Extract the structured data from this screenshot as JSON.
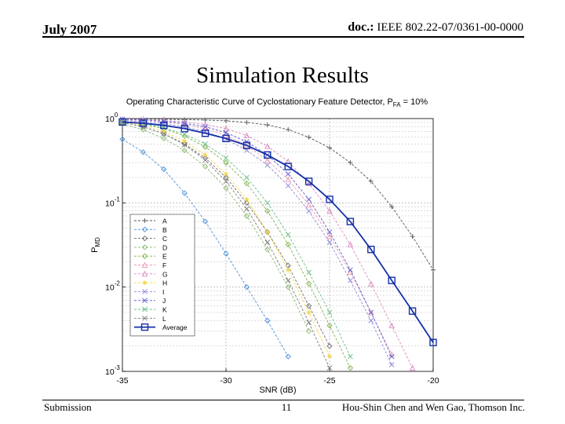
{
  "header": {
    "date": "July 2007",
    "doc_label": "doc.:",
    "doc_number": "IEEE 802.22-07/0361-00-0000"
  },
  "slide_title": "Simulation Results",
  "footer": {
    "left": "Submission",
    "page": "11",
    "right": "Hou-Shin Chen and Wen Gao, Thomson Inc."
  },
  "chart_data": {
    "type": "line",
    "title_prefix": "Operating Characteristic Curve of Cyclostationary Feature Detector, P",
    "title_sub": "FA",
    "title_suffix": " = 10%",
    "xlabel": "SNR (dB)",
    "ylabel": "P",
    "ylabel_sub": "MD",
    "xlim": [
      -35,
      -20
    ],
    "ylim": [
      0.001,
      1
    ],
    "yscale": "log",
    "grid": true,
    "legend_position": "lower-left",
    "x_ticks": [
      "-35",
      "-30",
      "-25",
      "-20"
    ],
    "y_ticks": [
      {
        "base": "10",
        "exp": "0"
      },
      {
        "base": "10",
        "exp": "-1"
      },
      {
        "base": "10",
        "exp": "-2"
      },
      {
        "base": "10",
        "exp": "-3"
      }
    ],
    "x": [
      -35,
      -34,
      -33,
      -32,
      -31,
      -30,
      -29,
      -28,
      -27,
      -26,
      -25,
      -24,
      -23,
      -22,
      -21,
      -20
    ],
    "series": [
      {
        "name": "A",
        "color": "#555555",
        "marker": "plus",
        "values": [
          0.99,
          0.99,
          0.98,
          0.97,
          0.96,
          0.94,
          0.9,
          0.84,
          0.74,
          0.6,
          0.45,
          0.3,
          0.18,
          0.09,
          0.04,
          0.016
        ]
      },
      {
        "name": "B",
        "color": "#4a90d9",
        "marker": "diamond",
        "values": [
          0.57,
          0.4,
          0.25,
          0.13,
          0.06,
          0.025,
          0.01,
          0.004,
          0.0015,
          null,
          null,
          null,
          null,
          null,
          null,
          null
        ]
      },
      {
        "name": "C",
        "color": "#6e6e6e",
        "marker": "diamond",
        "values": [
          0.9,
          0.8,
          0.66,
          0.5,
          0.34,
          0.2,
          0.1,
          0.045,
          0.018,
          0.006,
          0.002,
          null,
          null,
          null,
          null,
          null
        ]
      },
      {
        "name": "D",
        "color": "#8ab86e",
        "marker": "diamond",
        "values": [
          0.86,
          0.74,
          0.58,
          0.42,
          0.27,
          0.15,
          0.07,
          0.028,
          0.01,
          0.003,
          null,
          null,
          null,
          null,
          null,
          null
        ]
      },
      {
        "name": "E",
        "color": "#7fb24a",
        "marker": "diamond",
        "values": [
          0.93,
          0.86,
          0.76,
          0.62,
          0.46,
          0.3,
          0.17,
          0.08,
          0.032,
          0.011,
          0.0035,
          0.0011,
          null,
          null,
          null,
          null
        ]
      },
      {
        "name": "F",
        "color": "#f09ab8",
        "marker": "triangle",
        "values": [
          0.97,
          0.95,
          0.91,
          0.85,
          0.76,
          0.63,
          0.48,
          0.32,
          0.19,
          0.095,
          0.04,
          0.015,
          0.005,
          0.0016,
          null,
          null
        ]
      },
      {
        "name": "G",
        "color": "#d98ac0",
        "marker": "triangle",
        "values": [
          0.98,
          0.97,
          0.95,
          0.91,
          0.85,
          0.76,
          0.63,
          0.47,
          0.31,
          0.17,
          0.08,
          0.032,
          0.011,
          0.0035,
          0.0011,
          null
        ]
      },
      {
        "name": "H",
        "color": "#f2d64a",
        "marker": "star",
        "values": [
          0.92,
          0.83,
          0.7,
          0.54,
          0.37,
          0.22,
          0.11,
          0.045,
          0.016,
          0.005,
          0.0015,
          null,
          null,
          null,
          null,
          null
        ]
      },
      {
        "name": "I",
        "color": "#8a8ad9",
        "marker": "cross",
        "values": [
          0.95,
          0.92,
          0.87,
          0.8,
          0.7,
          0.57,
          0.42,
          0.28,
          0.16,
          0.08,
          0.034,
          0.012,
          0.004,
          0.0012,
          null,
          null
        ]
      },
      {
        "name": "J",
        "color": "#5a5acc",
        "marker": "cross",
        "values": [
          0.98,
          0.96,
          0.93,
          0.88,
          0.8,
          0.68,
          0.53,
          0.37,
          0.22,
          0.11,
          0.045,
          0.016,
          0.005,
          0.0015,
          null,
          null
        ]
      },
      {
        "name": "K",
        "color": "#6cbf8a",
        "marker": "cross",
        "values": [
          0.93,
          0.87,
          0.78,
          0.65,
          0.5,
          0.34,
          0.2,
          0.1,
          0.042,
          0.015,
          0.005,
          0.0015,
          null,
          null,
          null,
          null
        ]
      },
      {
        "name": "L",
        "color": "#7a7a7a",
        "marker": "cross",
        "values": [
          0.9,
          0.8,
          0.66,
          0.49,
          0.32,
          0.18,
          0.085,
          0.034,
          0.012,
          0.0038,
          0.0011,
          null,
          null,
          null,
          null,
          null
        ]
      },
      {
        "name": "Average",
        "color": "#1530a8",
        "marker": "square",
        "bold": true,
        "values": [
          0.91,
          0.88,
          0.83,
          0.76,
          0.67,
          0.58,
          0.48,
          0.37,
          0.27,
          0.18,
          0.11,
          0.06,
          0.028,
          0.012,
          0.0052,
          0.0022
        ]
      }
    ]
  }
}
